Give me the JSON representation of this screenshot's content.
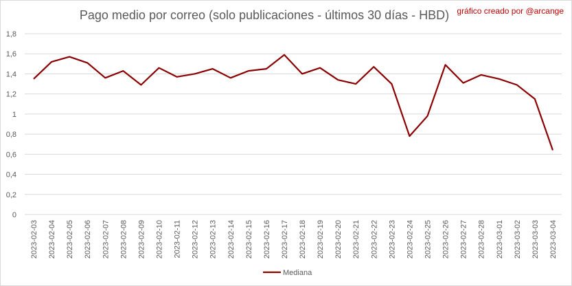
{
  "chart_data": {
    "type": "line",
    "title": "Pago medio por correo (solo publicaciones - últimos 30 días - HBD)",
    "annotation": "gráfico creado por @arcange",
    "categories": [
      "2023-02-03",
      "2023-02-04",
      "2023-02-05",
      "2023-02-06",
      "2023-02-07",
      "2023-02-08",
      "2023-02-09",
      "2023-02-10",
      "2023-02-11",
      "2023-02-12",
      "2023-02-13",
      "2023-02-14",
      "2023-02-15",
      "2023-02-16",
      "2023-02-17",
      "2023-02-18",
      "2023-02-19",
      "2023-02-20",
      "2023-02-21",
      "2023-02-22",
      "2023-02-23",
      "2023-02-24",
      "2023-02-25",
      "2023-02-26",
      "2023-02-27",
      "2023-02-28",
      "2023-03-01",
      "2023-03-02",
      "2023-03-03",
      "2023-03-04"
    ],
    "series": [
      {
        "name": "Mediana",
        "color": "#8b0000",
        "values": [
          1.35,
          1.52,
          1.57,
          1.51,
          1.36,
          1.43,
          1.29,
          1.46,
          1.37,
          1.4,
          1.45,
          1.36,
          1.43,
          1.45,
          1.59,
          1.4,
          1.46,
          1.34,
          1.3,
          1.47,
          1.3,
          0.78,
          0.98,
          1.49,
          1.31,
          1.39,
          1.35,
          1.29,
          1.15,
          0.64
        ]
      }
    ],
    "yticks": [
      "0",
      "0,2",
      "0,4",
      "0,6",
      "0,8",
      "1",
      "1,2",
      "1,4",
      "1,6",
      "1,8"
    ],
    "ylim": [
      0,
      1.8
    ],
    "grid": true,
    "legend": "bottom"
  }
}
